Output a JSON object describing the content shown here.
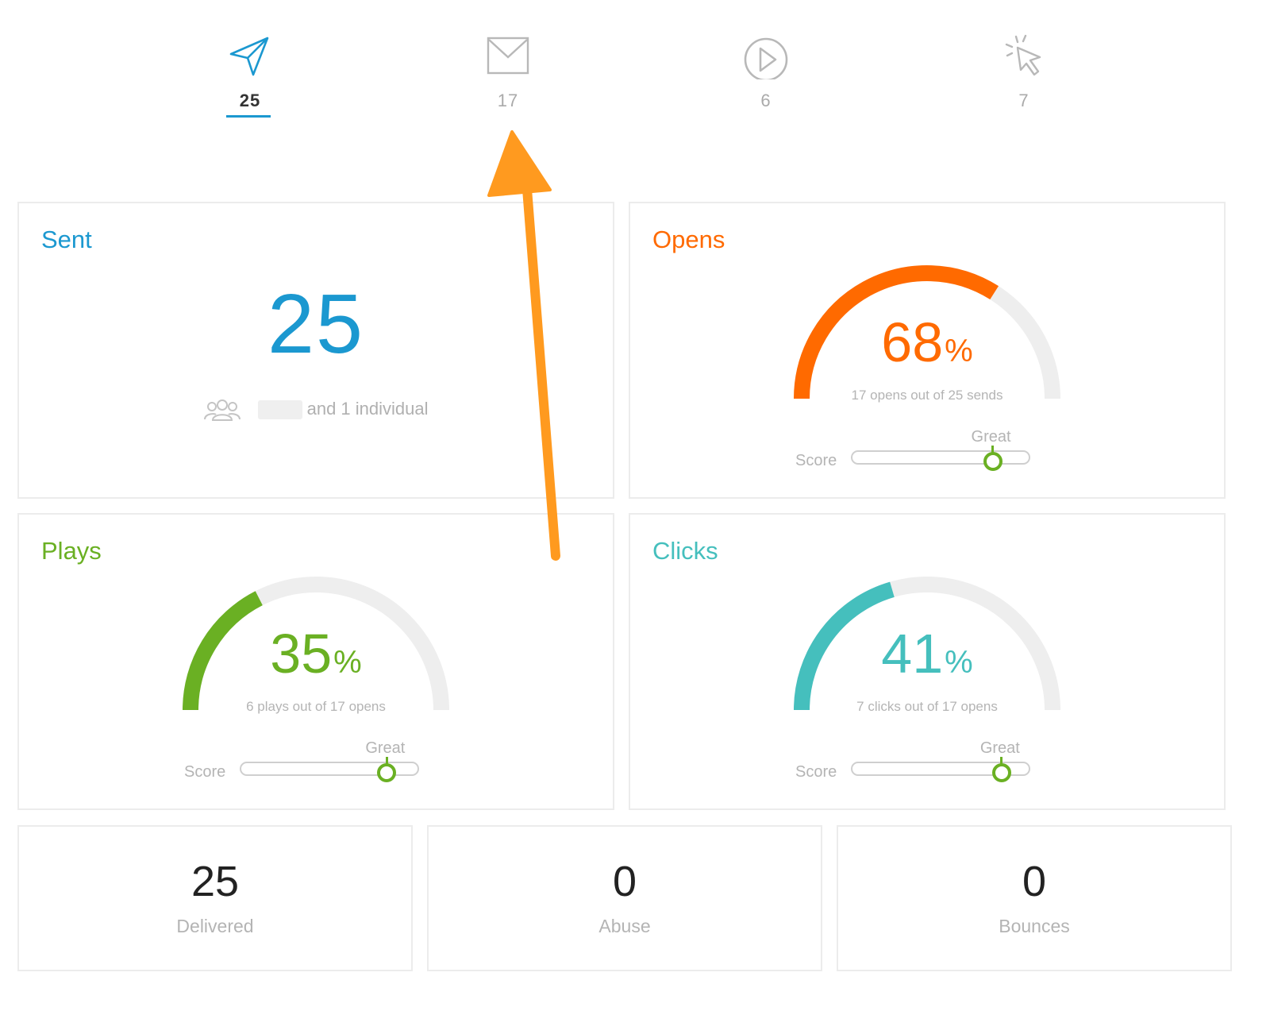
{
  "tabs": [
    {
      "icon": "paper-plane-icon",
      "count": "25",
      "active": true
    },
    {
      "icon": "envelope-icon",
      "count": "17",
      "active": false
    },
    {
      "icon": "play-icon",
      "count": "6",
      "active": false
    },
    {
      "icon": "cursor-click-icon",
      "count": "7",
      "active": false
    }
  ],
  "sent": {
    "title": "Sent",
    "value": "25",
    "audience_suffix": "and 1 individual",
    "color": "#1b98d0"
  },
  "opens": {
    "title": "Opens",
    "percent": "68",
    "percent_sign": "%",
    "subtitle": "17 opens out of 25 sends",
    "score_label": "Score",
    "score_rating": "Great",
    "fraction": 0.68,
    "score_level": 0.79,
    "color": "#ff6a00"
  },
  "plays": {
    "title": "Plays",
    "percent": "35",
    "percent_sign": "%",
    "subtitle": "6 plays out of 17 opens",
    "score_label": "Score",
    "score_rating": "Great",
    "fraction": 0.35,
    "score_level": 0.82,
    "color": "#6ab023"
  },
  "clicks": {
    "title": "Clicks",
    "percent": "41",
    "percent_sign": "%",
    "subtitle": "7 clicks out of 17 opens",
    "score_label": "Score",
    "score_rating": "Great",
    "fraction": 0.41,
    "score_level": 0.84,
    "color": "#45bfbd"
  },
  "stats": [
    {
      "value": "25",
      "label": "Delivered"
    },
    {
      "value": "0",
      "label": "Abuse"
    },
    {
      "value": "0",
      "label": "Bounces"
    }
  ],
  "colors": {
    "annotation_arrow": "#ff9a1f",
    "track": "#eeeeee",
    "score_marker": "#6ab023"
  }
}
